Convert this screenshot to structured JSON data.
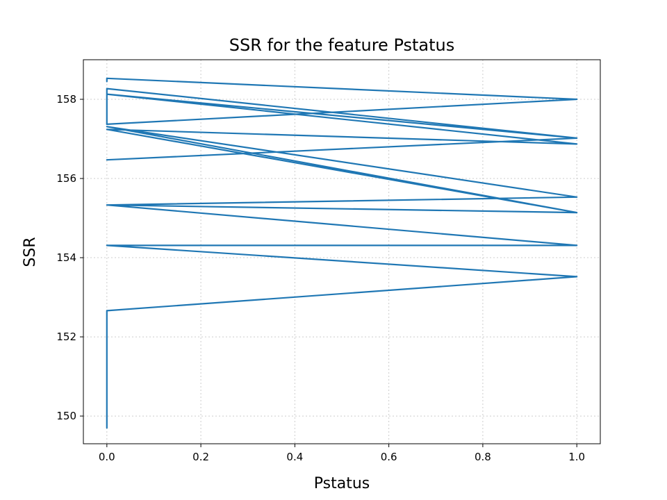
{
  "chart_data": {
    "type": "line",
    "title": "SSR for the feature Pstatus",
    "xlabel": "Pstatus",
    "ylabel": "SSR",
    "xlim": [
      -0.05,
      1.05
    ],
    "ylim": [
      149.3,
      159.0
    ],
    "xticks": [
      0.0,
      0.2,
      0.4,
      0.6,
      0.8,
      1.0
    ],
    "xtick_labels": [
      "0.0",
      "0.2",
      "0.4",
      "0.6",
      "0.8",
      "1.0"
    ],
    "yticks": [
      150,
      152,
      154,
      156,
      158
    ],
    "ytick_labels": [
      "150",
      "152",
      "154",
      "156",
      "158"
    ],
    "grid": true,
    "series": [
      {
        "color": "#1f77b4",
        "x": [
          0,
          0,
          0,
          0,
          0,
          0,
          1,
          0,
          1,
          0,
          1,
          0,
          0,
          1,
          0,
          1,
          0,
          1,
          0,
          1,
          0,
          1,
          0,
          0,
          0
        ],
        "y": [
          149.7,
          150.6,
          151.4,
          152.0,
          152.66,
          152.66,
          153.52,
          154.31,
          154.31,
          155.33,
          155.14,
          155.33,
          155.33,
          155.53,
          157.31,
          155.14,
          157.24,
          156.87,
          158.13,
          157.02,
          156.47,
          157.02,
          158.27,
          157.37,
          157.37
        ]
      },
      {
        "color": "#1f77b4",
        "x": [
          0,
          1,
          0,
          1,
          0,
          0
        ],
        "y": [
          157.37,
          158.0,
          158.53,
          158.0,
          158.53,
          158.45
        ]
      }
    ]
  }
}
